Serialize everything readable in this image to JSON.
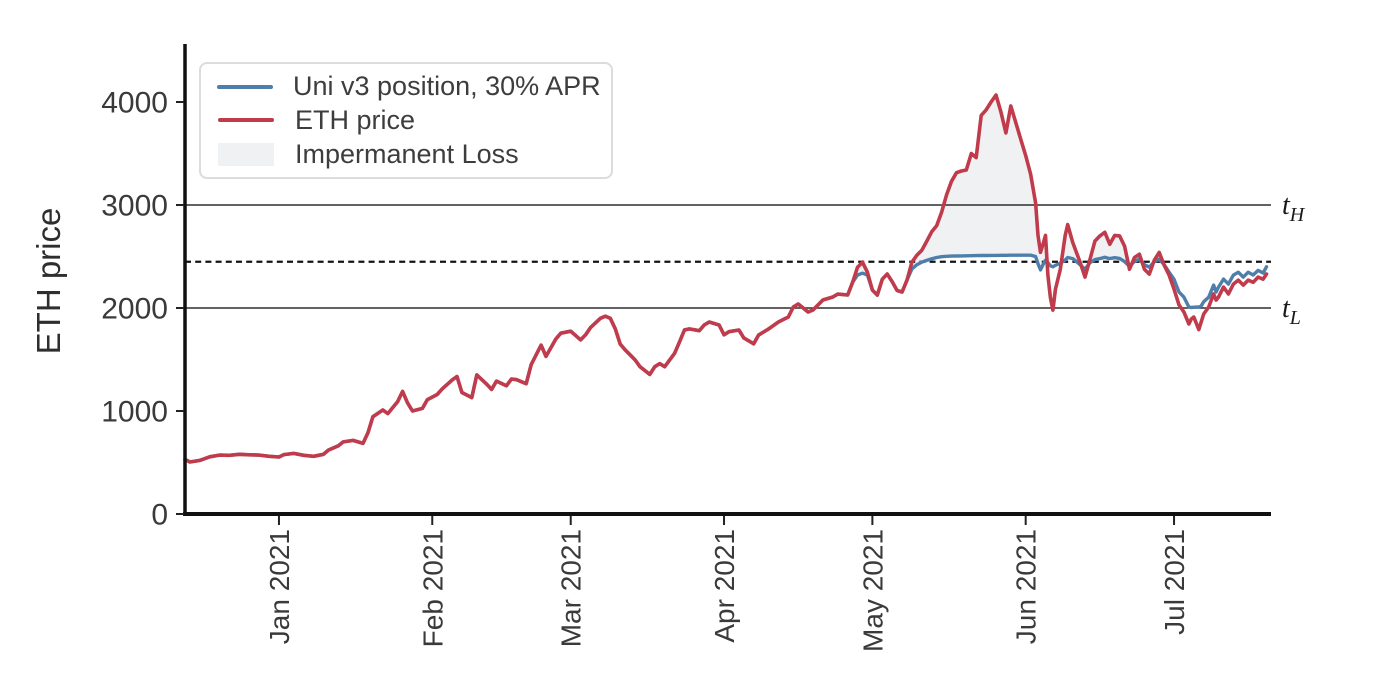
{
  "figure": {
    "background": "#ffffff",
    "text_color": "#3a3a3a"
  },
  "legend": {
    "position": "upper left",
    "items": [
      {
        "label": "Uni v3 position, 30% APR",
        "swatch": "line",
        "color": "#4e7fab"
      },
      {
        "label": "ETH price",
        "swatch": "line",
        "color": "#c03b4b"
      },
      {
        "label": "Impermanent Loss",
        "swatch": "patch",
        "color": "#f0f1f3"
      }
    ]
  },
  "chart_data": {
    "type": "line",
    "title": "",
    "xlabel": "",
    "ylabel": "ETH price",
    "grid": false,
    "ylim": [
      0,
      4000
    ],
    "y_ticks": [
      0,
      1000,
      2000,
      3000,
      4000
    ],
    "x_domain": [
      0,
      219
    ],
    "x_ticks": [
      {
        "day": 19,
        "label": "Jan 2021"
      },
      {
        "day": 50,
        "label": "Feb 2021"
      },
      {
        "day": 78,
        "label": "Mar 2021"
      },
      {
        "day": 109,
        "label": "Apr 2021"
      },
      {
        "day": 139,
        "label": "May 2021"
      },
      {
        "day": 170,
        "label": "Jun 2021"
      },
      {
        "day": 200,
        "label": "Jul 2021"
      }
    ],
    "hlines": [
      {
        "value": 3000,
        "label": "t_H",
        "style": "solid"
      },
      {
        "value": 2000,
        "label": "t_L",
        "style": "solid"
      },
      {
        "value": 2449,
        "label": "",
        "style": "dashed"
      }
    ],
    "days": [
      0,
      1,
      3,
      5,
      7,
      9,
      11,
      13,
      15,
      17,
      19,
      20,
      22,
      24,
      26,
      28,
      29,
      31,
      32,
      34,
      35,
      36,
      37,
      38,
      40,
      41,
      43,
      44,
      45,
      46,
      48,
      49,
      51,
      52,
      54,
      55,
      56,
      58,
      59,
      61,
      62,
      63,
      65,
      66,
      67,
      69,
      70,
      72,
      73,
      75,
      76,
      78,
      80,
      81,
      82,
      84,
      85,
      86,
      87,
      88,
      89,
      91,
      92,
      94,
      95,
      96,
      97,
      99,
      100,
      101,
      102,
      104,
      105,
      106,
      108,
      109,
      110,
      112,
      113,
      115,
      116,
      118,
      120,
      122,
      123,
      124,
      126,
      127,
      129,
      131,
      132,
      134,
      135,
      136,
      137,
      138,
      139,
      140,
      141,
      142,
      143,
      144,
      145,
      146,
      147,
      148,
      149,
      150,
      151,
      152,
      153,
      154,
      155,
      156,
      157,
      158,
      159,
      160,
      161,
      162,
      163,
      164,
      165,
      166,
      167,
      168,
      169,
      170,
      171,
      172,
      172.5,
      173,
      173.5,
      174,
      174.5,
      175,
      175.5,
      176,
      177,
      178,
      178.5,
      179.5,
      181,
      182,
      183,
      184,
      185,
      186,
      187,
      188,
      189,
      190,
      191,
      192,
      193,
      194,
      195,
      196,
      197,
      198,
      199,
      200,
      201,
      202,
      203,
      203.5,
      204,
      205,
      205.5,
      206,
      207,
      208,
      208.5,
      209,
      210,
      211,
      212,
      213,
      214,
      215,
      216,
      217,
      218,
      218.7
    ],
    "series": [
      {
        "name": "Uni v3 position, 30% APR",
        "color": "#4e7fab",
        "values": [
          530,
          505,
          520,
          555,
          572,
          570,
          580,
          575,
          572,
          560,
          553,
          577,
          588,
          570,
          560,
          580,
          620,
          662,
          700,
          715,
          700,
          685,
          790,
          945,
          1010,
          975,
          1090,
          1190,
          1080,
          1000,
          1025,
          1110,
          1160,
          1215,
          1300,
          1335,
          1180,
          1130,
          1350,
          1260,
          1210,
          1290,
          1245,
          1310,
          1305,
          1265,
          1450,
          1640,
          1530,
          1700,
          1755,
          1775,
          1690,
          1740,
          1810,
          1900,
          1920,
          1900,
          1800,
          1650,
          1594,
          1497,
          1430,
          1355,
          1430,
          1460,
          1430,
          1560,
          1671,
          1787,
          1797,
          1780,
          1835,
          1864,
          1835,
          1740,
          1770,
          1786,
          1710,
          1652,
          1738,
          1796,
          1864,
          1913,
          2010,
          2039,
          1961,
          1981,
          2078,
          2107,
          2135,
          2126,
          2250,
          2320,
          2338,
          2320,
          2174,
          2125,
          2280,
          2330,
          2255,
          2170,
          2155,
          2271,
          2380,
          2420,
          2446,
          2462,
          2478,
          2490,
          2498,
          2502,
          2504,
          2505,
          2506,
          2507,
          2508,
          2509,
          2510,
          2510,
          2511,
          2511,
          2512,
          2512,
          2513,
          2513,
          2513,
          2513,
          2513,
          2500,
          2430,
          2370,
          2420,
          2465,
          2440,
          2410,
          2400,
          2415,
          2435,
          2465,
          2490,
          2480,
          2420,
          2377,
          2440,
          2470,
          2480,
          2492,
          2480,
          2488,
          2482,
          2450,
          2405,
          2452,
          2474,
          2420,
          2396,
          2450,
          2474,
          2420,
          2348,
          2280,
          2155,
          2106,
          2010,
          2005,
          2008,
          2010,
          2020,
          2060,
          2106,
          2222,
          2155,
          2203,
          2281,
          2232,
          2319,
          2348,
          2300,
          2348,
          2320,
          2365,
          2340,
          2400
        ]
      },
      {
        "name": "ETH price",
        "color": "#c03b4b",
        "values": [
          530,
          505,
          520,
          555,
          572,
          570,
          580,
          575,
          572,
          560,
          553,
          577,
          588,
          570,
          560,
          580,
          620,
          662,
          700,
          715,
          700,
          685,
          790,
          945,
          1010,
          975,
          1090,
          1190,
          1080,
          1000,
          1025,
          1110,
          1160,
          1215,
          1300,
          1335,
          1180,
          1130,
          1350,
          1260,
          1210,
          1290,
          1245,
          1310,
          1305,
          1265,
          1450,
          1640,
          1530,
          1700,
          1755,
          1775,
          1690,
          1740,
          1810,
          1900,
          1920,
          1900,
          1800,
          1650,
          1594,
          1497,
          1430,
          1355,
          1430,
          1460,
          1430,
          1560,
          1671,
          1787,
          1797,
          1780,
          1835,
          1864,
          1835,
          1740,
          1770,
          1786,
          1710,
          1652,
          1738,
          1796,
          1864,
          1913,
          2010,
          2039,
          1961,
          1981,
          2078,
          2107,
          2135,
          2126,
          2250,
          2395,
          2445,
          2348,
          2174,
          2125,
          2280,
          2330,
          2255,
          2170,
          2155,
          2271,
          2445,
          2513,
          2560,
          2650,
          2740,
          2800,
          2930,
          3100,
          3230,
          3314,
          3330,
          3340,
          3500,
          3460,
          3870,
          3923,
          4000,
          4068,
          3900,
          3700,
          3961,
          3800,
          3640,
          3480,
          3300,
          3020,
          2705,
          2541,
          2619,
          2705,
          2318,
          2100,
          1980,
          2180,
          2376,
          2705,
          2810,
          2637,
          2444,
          2300,
          2473,
          2650,
          2700,
          2735,
          2618,
          2705,
          2700,
          2600,
          2377,
          2490,
          2522,
          2377,
          2329,
          2464,
          2540,
          2415,
          2319,
          2184,
          2030,
          1961,
          1845,
          1893,
          1913,
          1790,
          1864,
          1942,
          2010,
          2136,
          2077,
          2106,
          2203,
          2136,
          2232,
          2271,
          2222,
          2271,
          2250,
          2300,
          2280,
          2330
        ]
      }
    ],
    "fill_between": {
      "label": "Impermanent Loss",
      "color": "#f0f1f3",
      "between": [
        "ETH price",
        "Uni v3 position, 30% APR"
      ],
      "where": "eth_price > uni_v3_position"
    }
  }
}
